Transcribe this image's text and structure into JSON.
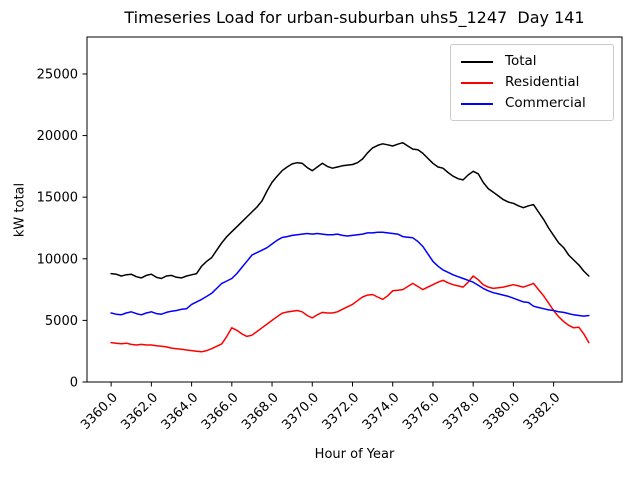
{
  "chart_data": {
    "type": "line",
    "title": "Timeseries Load for urban-suburban uhs5_1247  Day 141",
    "xlabel": "Hour of Year",
    "ylabel": "kW total",
    "grid": false,
    "legend_position": "upper right",
    "xlim": [
      3358.8,
      3385.4
    ],
    "ylim": [
      0,
      28000
    ],
    "x_ticks": [
      3360,
      3362,
      3364,
      3366,
      3368,
      3370,
      3372,
      3374,
      3376,
      3378,
      3380,
      3382
    ],
    "x_tick_labels": [
      "3360.0",
      "3362.0",
      "3364.0",
      "3366.0",
      "3368.0",
      "3370.0",
      "3372.0",
      "3374.0",
      "3376.0",
      "3378.0",
      "3380.0",
      "3382.0"
    ],
    "y_ticks": [
      0,
      5000,
      10000,
      15000,
      20000,
      25000
    ],
    "y_tick_labels": [
      "0",
      "5000",
      "10000",
      "15000",
      "20000",
      "25000"
    ],
    "x": [
      3360,
      3360.25,
      3360.5,
      3360.75,
      3361,
      3361.25,
      3361.5,
      3361.75,
      3362,
      3362.25,
      3362.5,
      3362.75,
      3363,
      3363.25,
      3363.5,
      3363.75,
      3364,
      3364.25,
      3364.5,
      3364.75,
      3365,
      3365.25,
      3365.5,
      3365.75,
      3366,
      3366.25,
      3366.5,
      3366.75,
      3367,
      3367.25,
      3367.5,
      3367.75,
      3368,
      3368.25,
      3368.5,
      3368.75,
      3369,
      3369.25,
      3369.5,
      3369.75,
      3370,
      3370.25,
      3370.5,
      3370.75,
      3371,
      3371.25,
      3371.5,
      3371.75,
      3372,
      3372.25,
      3372.5,
      3372.75,
      3373,
      3373.25,
      3373.5,
      3373.75,
      3374,
      3374.25,
      3374.5,
      3374.75,
      3375,
      3375.25,
      3375.5,
      3375.75,
      3376,
      3376.25,
      3376.5,
      3376.75,
      3377,
      3377.25,
      3377.5,
      3377.75,
      3378,
      3378.25,
      3378.5,
      3378.75,
      3379,
      3379.25,
      3379.5,
      3379.75,
      3380,
      3380.25,
      3380.5,
      3380.75,
      3381,
      3381.25,
      3381.5,
      3381.75,
      3382,
      3382.25,
      3382.5,
      3382.75,
      3383,
      3383.25,
      3383.5,
      3383.75
    ],
    "series": [
      {
        "name": "Total",
        "color": "#000000",
        "values": [
          8800,
          8750,
          8600,
          8700,
          8750,
          8550,
          8450,
          8650,
          8750,
          8500,
          8400,
          8600,
          8650,
          8500,
          8450,
          8600,
          8700,
          8800,
          9400,
          9800,
          10100,
          10700,
          11300,
          11800,
          12200,
          12600,
          13000,
          13400,
          13800,
          14200,
          14700,
          15500,
          16200,
          16700,
          17150,
          17450,
          17700,
          17800,
          17750,
          17400,
          17150,
          17450,
          17750,
          17500,
          17350,
          17450,
          17550,
          17600,
          17650,
          17800,
          18100,
          18600,
          19000,
          19200,
          19330,
          19250,
          19150,
          19300,
          19420,
          19150,
          18900,
          18850,
          18550,
          18150,
          17750,
          17450,
          17350,
          17000,
          16700,
          16500,
          16400,
          16800,
          17100,
          16900,
          16200,
          15700,
          15400,
          15100,
          14800,
          14600,
          14500,
          14300,
          14150,
          14300,
          14400,
          13800,
          13200,
          12500,
          11900,
          11300,
          10900,
          10300,
          9900,
          9500,
          9000,
          8600
        ]
      },
      {
        "name": "Residential",
        "color": "#ff0000",
        "values": [
          3200,
          3150,
          3100,
          3150,
          3050,
          3000,
          3050,
          3000,
          3000,
          2950,
          2900,
          2850,
          2750,
          2700,
          2650,
          2600,
          2550,
          2500,
          2450,
          2550,
          2700,
          2900,
          3100,
          3700,
          4400,
          4200,
          3900,
          3700,
          3800,
          4100,
          4400,
          4700,
          5000,
          5300,
          5580,
          5680,
          5750,
          5800,
          5700,
          5400,
          5200,
          5450,
          5650,
          5600,
          5600,
          5700,
          5900,
          6100,
          6300,
          6600,
          6900,
          7050,
          7100,
          6900,
          6700,
          7000,
          7400,
          7450,
          7500,
          7750,
          8000,
          7750,
          7500,
          7700,
          7900,
          8100,
          8250,
          8050,
          7900,
          7800,
          7700,
          8100,
          8600,
          8300,
          7900,
          7700,
          7600,
          7650,
          7700,
          7800,
          7900,
          7800,
          7700,
          7850,
          8000,
          7500,
          7000,
          6400,
          5800,
          5300,
          4900,
          4600,
          4400,
          4450,
          3900,
          3200
        ]
      },
      {
        "name": "Commercial",
        "color": "#0000ff",
        "values": [
          5600,
          5500,
          5450,
          5600,
          5700,
          5550,
          5450,
          5600,
          5700,
          5550,
          5500,
          5650,
          5750,
          5800,
          5900,
          5950,
          6300,
          6500,
          6700,
          6950,
          7200,
          7600,
          8000,
          8200,
          8400,
          8800,
          9300,
          9800,
          10300,
          10500,
          10700,
          10900,
          11200,
          11500,
          11730,
          11800,
          11900,
          11950,
          12000,
          12050,
          12000,
          12050,
          12000,
          11950,
          11950,
          12000,
          11900,
          11850,
          11900,
          11950,
          12000,
          12100,
          12100,
          12150,
          12150,
          12100,
          12050,
          12000,
          11800,
          11750,
          11700,
          11400,
          11000,
          10400,
          9800,
          9400,
          9100,
          8900,
          8700,
          8550,
          8400,
          8250,
          8100,
          7850,
          7600,
          7400,
          7250,
          7150,
          7050,
          6950,
          6800,
          6650,
          6500,
          6450,
          6150,
          6050,
          5950,
          5850,
          5800,
          5700,
          5650,
          5550,
          5450,
          5400,
          5350,
          5400
        ]
      }
    ]
  }
}
